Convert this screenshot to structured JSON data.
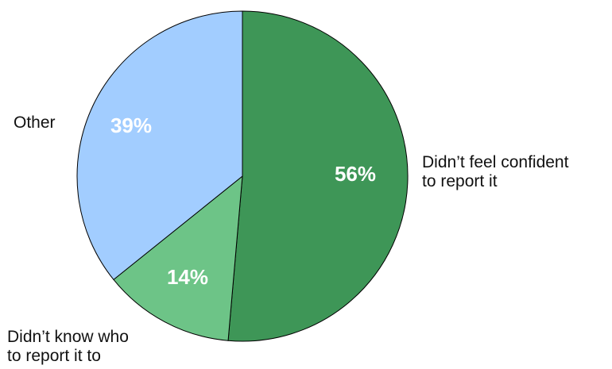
{
  "chart_data": {
    "type": "pie",
    "slices": [
      {
        "label_lines": [
          "Didn’t feel confident",
          "to report it"
        ],
        "value": 56,
        "value_label": "56%",
        "color": "#3e9657"
      },
      {
        "label_lines": [
          "Didn’t know who",
          "to report it to"
        ],
        "value": 14,
        "value_label": "14%",
        "color": "#6dc487"
      },
      {
        "label_lines": [
          "Other"
        ],
        "value": 39,
        "value_label": "39%",
        "color": "#a2cdff"
      }
    ]
  }
}
